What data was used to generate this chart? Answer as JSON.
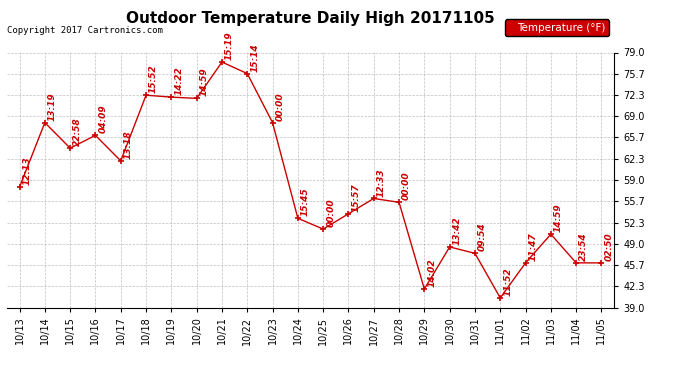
{
  "title": "Outdoor Temperature Daily High 20171105",
  "copyright": "Copyright 2017 Cartronics.com",
  "legend_label": "Temperature (°F)",
  "line_color": "#cc0000",
  "bg_color": "#ffffff",
  "grid_color": "#b0b0b0",
  "legend_bg": "#cc0000",
  "legend_text_color": "#ffffff",
  "ylim": [
    39.0,
    79.0
  ],
  "yticks": [
    39.0,
    42.3,
    45.7,
    49.0,
    52.3,
    55.7,
    59.0,
    62.3,
    65.7,
    69.0,
    72.3,
    75.7,
    79.0
  ],
  "dates": [
    "10/13",
    "10/14",
    "10/15",
    "10/16",
    "10/17",
    "10/18",
    "10/19",
    "10/20",
    "10/21",
    "10/22",
    "10/23",
    "10/24",
    "10/25",
    "10/26",
    "10/27",
    "10/28",
    "10/29",
    "10/30",
    "10/31",
    "11/01",
    "11/02",
    "11/03",
    "11/04",
    "11/05"
  ],
  "values": [
    57.9,
    68.0,
    64.0,
    66.0,
    62.0,
    72.3,
    72.0,
    71.8,
    77.5,
    75.7,
    68.0,
    53.0,
    51.3,
    53.7,
    56.1,
    55.5,
    41.9,
    48.5,
    47.5,
    40.5,
    46.0,
    50.5,
    46.0,
    46.0
  ],
  "labels": [
    "12:13",
    "13:19",
    "22:58",
    "04:09",
    "13:18",
    "15:52",
    "14:22",
    "14:59",
    "15:19",
    "15:14",
    "00:00",
    "15:45",
    "00:00",
    "15:57",
    "12:33",
    "00:00",
    "14:02",
    "13:42",
    "09:54",
    "11:52",
    "11:47",
    "14:59",
    "23:54",
    "02:50"
  ],
  "title_fontsize": 11,
  "tick_fontsize": 7,
  "label_fontsize": 6.5,
  "copyright_fontsize": 6.5
}
